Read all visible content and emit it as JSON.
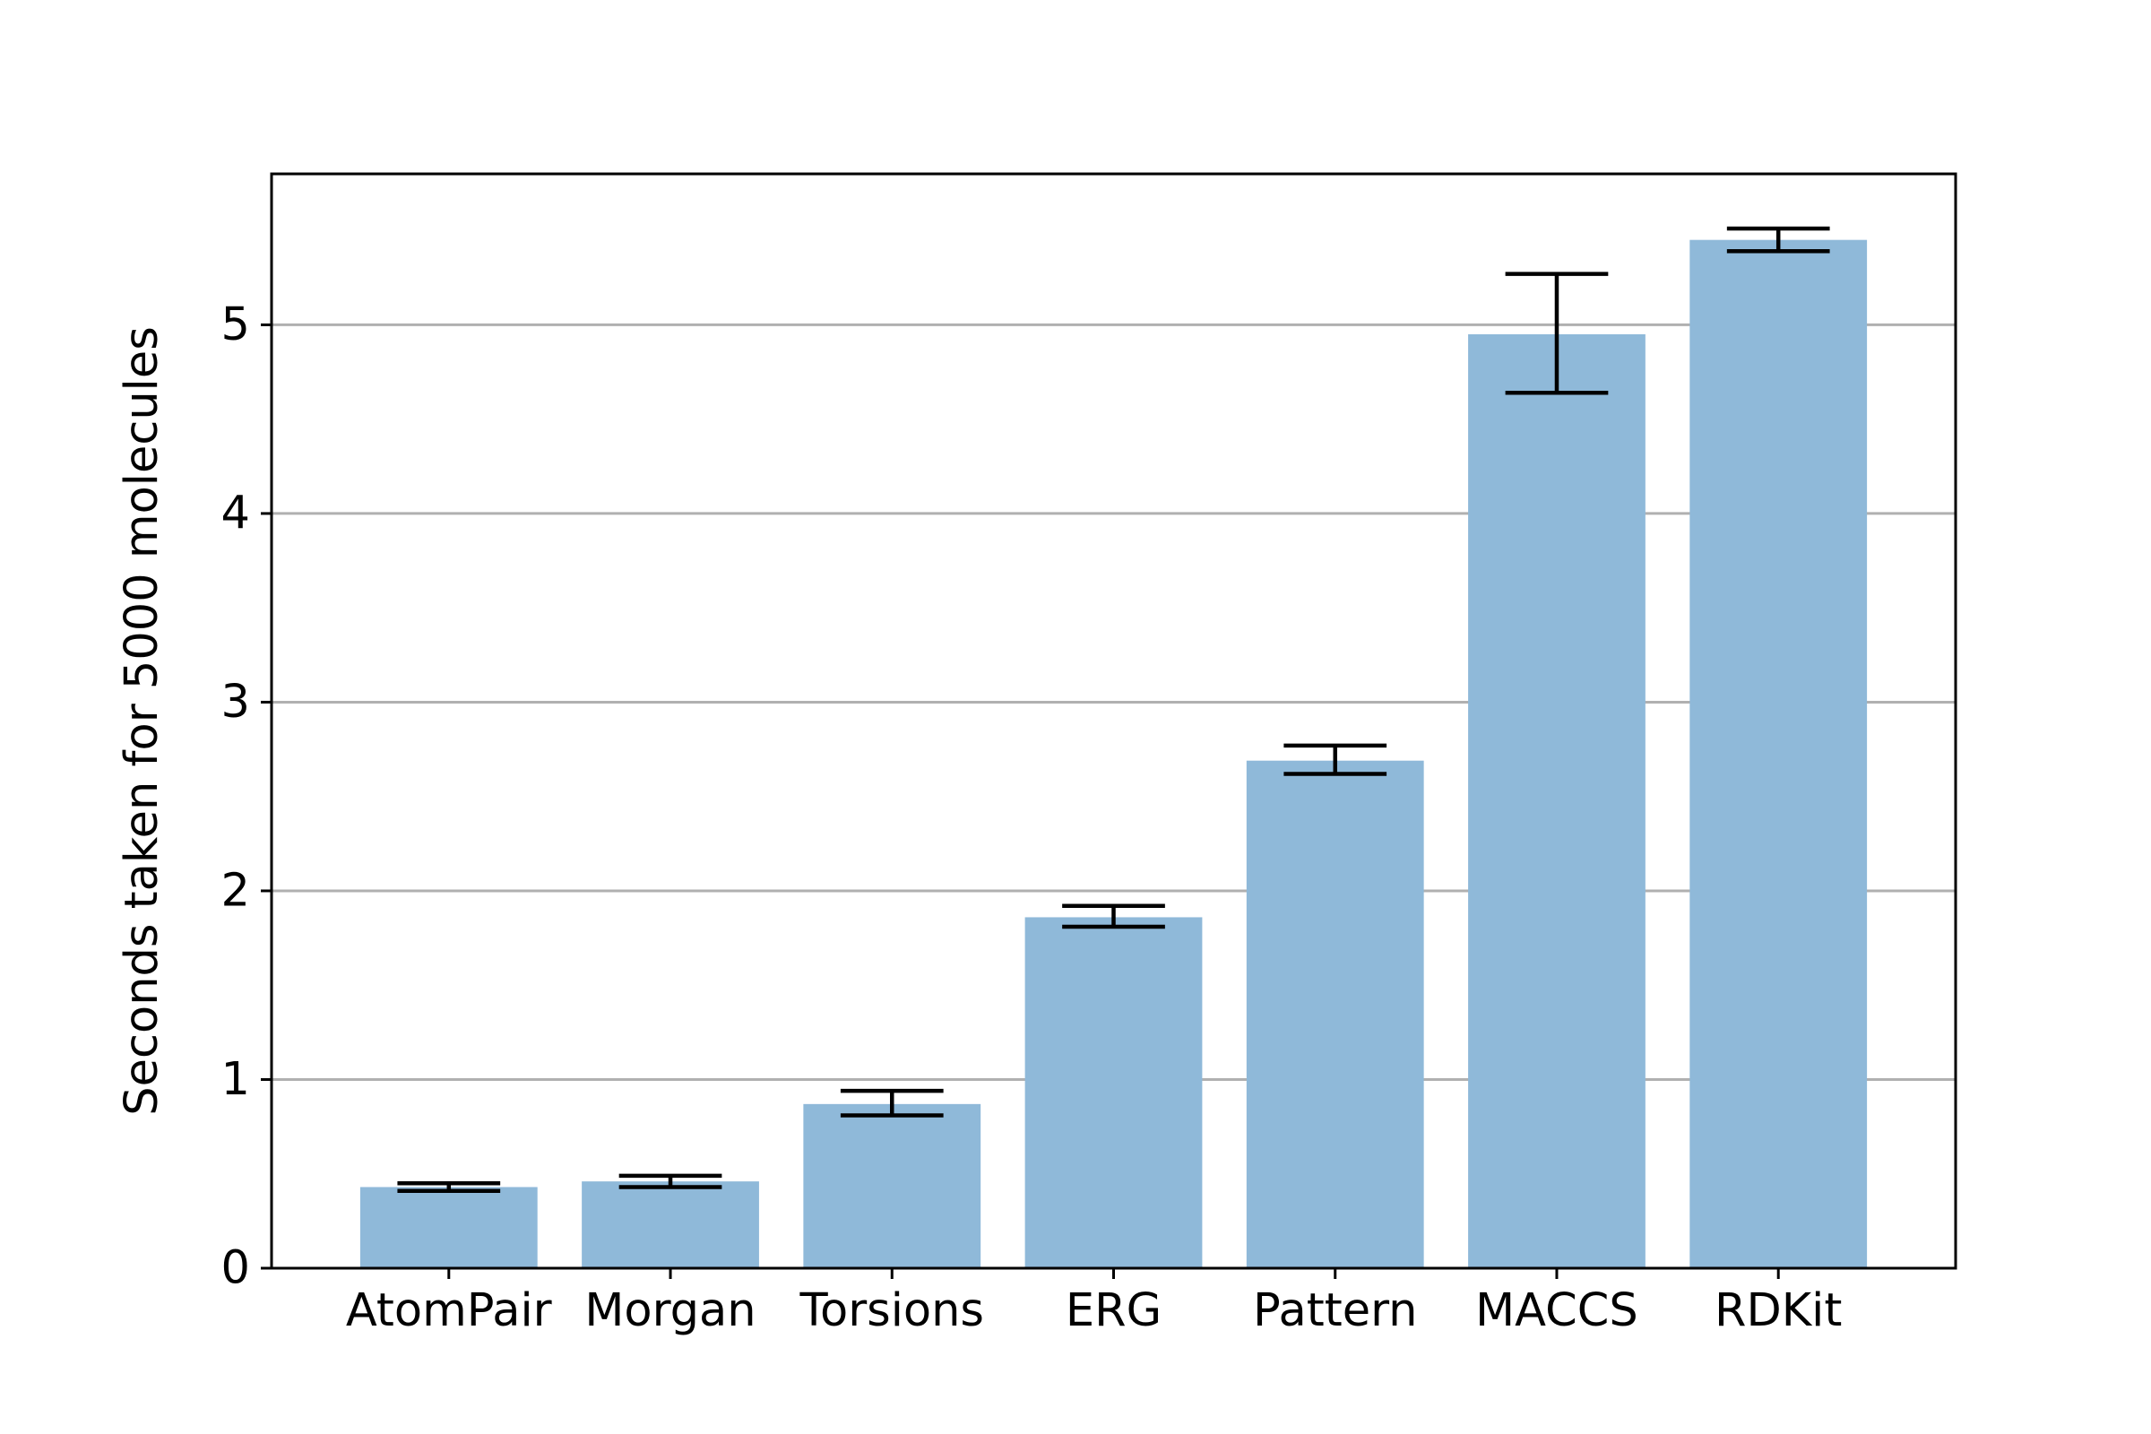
{
  "chart_data": {
    "type": "bar",
    "categories": [
      "AtomPair",
      "Morgan",
      "Torsions",
      "ERG",
      "Pattern",
      "MACCS",
      "RDKit"
    ],
    "series": [
      {
        "values": [
          0.43,
          0.46,
          0.87,
          1.86,
          2.69,
          4.95,
          5.45
        ],
        "error_low": [
          0.41,
          0.43,
          0.81,
          1.81,
          2.62,
          4.64,
          5.39
        ],
        "error_high": [
          0.45,
          0.49,
          0.94,
          1.92,
          2.77,
          5.27,
          5.51
        ]
      }
    ],
    "title": "",
    "xlabel": "",
    "ylabel": "Seconds taken for 5000 molecules",
    "ylim": [
      0,
      5.8
    ],
    "yticks": [
      0,
      1,
      2,
      3,
      4,
      5
    ],
    "grid": "horizontal",
    "colors": {
      "bar": "#8fb9d9",
      "error": "#000000",
      "grid": "#b0b0b0",
      "axis": "#000000"
    }
  }
}
